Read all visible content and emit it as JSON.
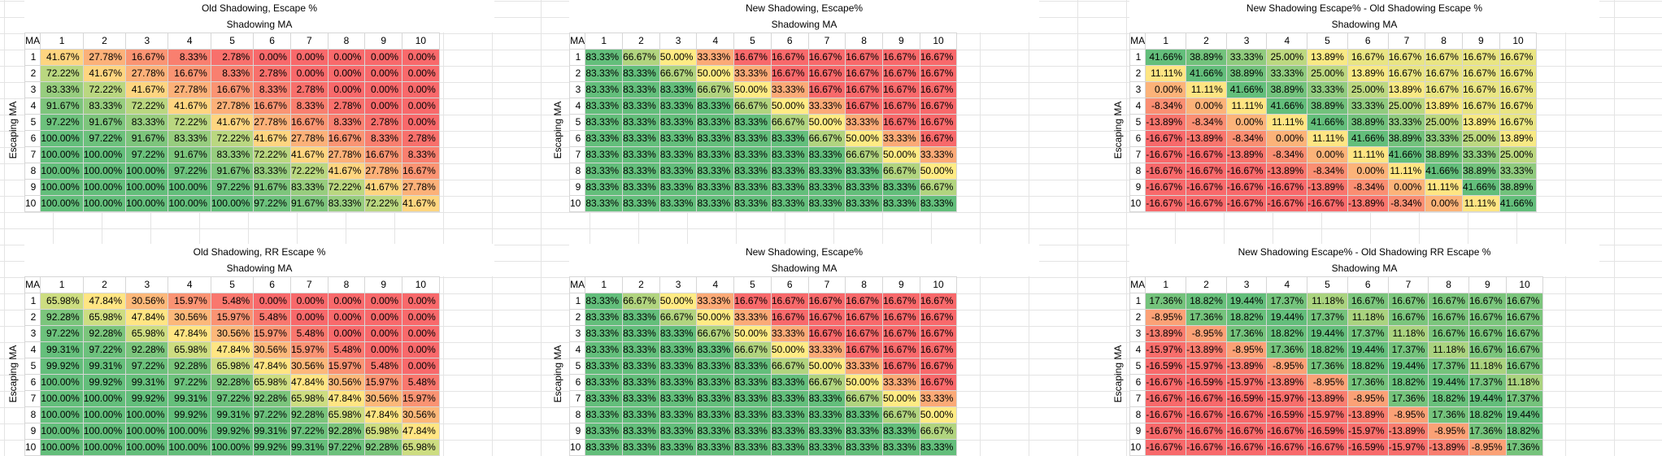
{
  "panels": [
    {
      "title": "Old Shadowing, Escape %",
      "subtitle": "Shadowing MA",
      "ylabel": "Escaping MA",
      "corner": "MA",
      "cols": [
        "1",
        "2",
        "3",
        "4",
        "5",
        "6",
        "7",
        "8",
        "9",
        "10"
      ],
      "rowlabels": [
        "1",
        "2",
        "3",
        "4",
        "5",
        "6",
        "7",
        "8",
        "9",
        "10"
      ],
      "rows": [
        [
          "41.67%",
          "27.78%",
          "16.67%",
          "8.33%",
          "2.78%",
          "0.00%",
          "0.00%",
          "0.00%",
          "0.00%",
          "0.00%"
        ],
        [
          "72.22%",
          "41.67%",
          "27.78%",
          "16.67%",
          "8.33%",
          "2.78%",
          "0.00%",
          "0.00%",
          "0.00%",
          "0.00%"
        ],
        [
          "83.33%",
          "72.22%",
          "41.67%",
          "27.78%",
          "16.67%",
          "8.33%",
          "2.78%",
          "0.00%",
          "0.00%",
          "0.00%"
        ],
        [
          "91.67%",
          "83.33%",
          "72.22%",
          "41.67%",
          "27.78%",
          "16.67%",
          "8.33%",
          "2.78%",
          "0.00%",
          "0.00%"
        ],
        [
          "97.22%",
          "91.67%",
          "83.33%",
          "72.22%",
          "41.67%",
          "27.78%",
          "16.67%",
          "8.33%",
          "2.78%",
          "0.00%"
        ],
        [
          "100.00%",
          "97.22%",
          "91.67%",
          "83.33%",
          "72.22%",
          "41.67%",
          "27.78%",
          "16.67%",
          "8.33%",
          "2.78%"
        ],
        [
          "100.00%",
          "100.00%",
          "97.22%",
          "91.67%",
          "83.33%",
          "72.22%",
          "41.67%",
          "27.78%",
          "16.67%",
          "8.33%"
        ],
        [
          "100.00%",
          "100.00%",
          "100.00%",
          "97.22%",
          "91.67%",
          "83.33%",
          "72.22%",
          "41.67%",
          "27.78%",
          "16.67%"
        ],
        [
          "100.00%",
          "100.00%",
          "100.00%",
          "100.00%",
          "97.22%",
          "91.67%",
          "83.33%",
          "72.22%",
          "41.67%",
          "27.78%"
        ],
        [
          "100.00%",
          "100.00%",
          "100.00%",
          "100.00%",
          "100.00%",
          "97.22%",
          "91.67%",
          "83.33%",
          "72.22%",
          "41.67%"
        ]
      ]
    },
    {
      "title": "New Shadowing, Escape%",
      "subtitle": "Shadowing MA",
      "ylabel": "Escaping MA",
      "corner": "MA",
      "cols": [
        "1",
        "2",
        "3",
        "4",
        "5",
        "6",
        "7",
        "8",
        "9",
        "10"
      ],
      "rowlabels": [
        "1",
        "2",
        "3",
        "4",
        "5",
        "6",
        "7",
        "8",
        "9",
        "10"
      ],
      "rows": [
        [
          "83.33%",
          "66.67%",
          "50.00%",
          "33.33%",
          "16.67%",
          "16.67%",
          "16.67%",
          "16.67%",
          "16.67%",
          "16.67%"
        ],
        [
          "83.33%",
          "83.33%",
          "66.67%",
          "50.00%",
          "33.33%",
          "16.67%",
          "16.67%",
          "16.67%",
          "16.67%",
          "16.67%"
        ],
        [
          "83.33%",
          "83.33%",
          "83.33%",
          "66.67%",
          "50.00%",
          "33.33%",
          "16.67%",
          "16.67%",
          "16.67%",
          "16.67%"
        ],
        [
          "83.33%",
          "83.33%",
          "83.33%",
          "83.33%",
          "66.67%",
          "50.00%",
          "33.33%",
          "16.67%",
          "16.67%",
          "16.67%"
        ],
        [
          "83.33%",
          "83.33%",
          "83.33%",
          "83.33%",
          "83.33%",
          "66.67%",
          "50.00%",
          "33.33%",
          "16.67%",
          "16.67%"
        ],
        [
          "83.33%",
          "83.33%",
          "83.33%",
          "83.33%",
          "83.33%",
          "83.33%",
          "66.67%",
          "50.00%",
          "33.33%",
          "16.67%"
        ],
        [
          "83.33%",
          "83.33%",
          "83.33%",
          "83.33%",
          "83.33%",
          "83.33%",
          "83.33%",
          "66.67%",
          "50.00%",
          "33.33%"
        ],
        [
          "83.33%",
          "83.33%",
          "83.33%",
          "83.33%",
          "83.33%",
          "83.33%",
          "83.33%",
          "83.33%",
          "66.67%",
          "50.00%"
        ],
        [
          "83.33%",
          "83.33%",
          "83.33%",
          "83.33%",
          "83.33%",
          "83.33%",
          "83.33%",
          "83.33%",
          "83.33%",
          "66.67%"
        ],
        [
          "83.33%",
          "83.33%",
          "83.33%",
          "83.33%",
          "83.33%",
          "83.33%",
          "83.33%",
          "83.33%",
          "83.33%",
          "83.33%"
        ]
      ]
    },
    {
      "title": "New Shadowing Escape% - Old Shadowing Escape %",
      "subtitle": "Shadowing MA",
      "ylabel": "Escaping MA",
      "corner": "MA",
      "cols": [
        "1",
        "2",
        "3",
        "4",
        "5",
        "6",
        "7",
        "8",
        "9",
        "10"
      ],
      "rowlabels": [
        "1",
        "2",
        "3",
        "4",
        "5",
        "6",
        "7",
        "8",
        "9",
        "10"
      ],
      "rows": [
        [
          "41.66%",
          "38.89%",
          "33.33%",
          "25.00%",
          "13.89%",
          "16.67%",
          "16.67%",
          "16.67%",
          "16.67%",
          "16.67%"
        ],
        [
          "11.11%",
          "41.66%",
          "38.89%",
          "33.33%",
          "25.00%",
          "13.89%",
          "16.67%",
          "16.67%",
          "16.67%",
          "16.67%"
        ],
        [
          "0.00%",
          "11.11%",
          "41.66%",
          "38.89%",
          "33.33%",
          "25.00%",
          "13.89%",
          "16.67%",
          "16.67%",
          "16.67%"
        ],
        [
          "-8.34%",
          "0.00%",
          "11.11%",
          "41.66%",
          "38.89%",
          "33.33%",
          "25.00%",
          "13.89%",
          "16.67%",
          "16.67%"
        ],
        [
          "-13.89%",
          "-8.34%",
          "0.00%",
          "11.11%",
          "41.66%",
          "38.89%",
          "33.33%",
          "25.00%",
          "13.89%",
          "16.67%"
        ],
        [
          "-16.67%",
          "-13.89%",
          "-8.34%",
          "0.00%",
          "11.11%",
          "41.66%",
          "38.89%",
          "33.33%",
          "25.00%",
          "13.89%"
        ],
        [
          "-16.67%",
          "-16.67%",
          "-13.89%",
          "-8.34%",
          "0.00%",
          "11.11%",
          "41.66%",
          "38.89%",
          "33.33%",
          "25.00%"
        ],
        [
          "-16.67%",
          "-16.67%",
          "-16.67%",
          "-13.89%",
          "-8.34%",
          "0.00%",
          "11.11%",
          "41.66%",
          "38.89%",
          "33.33%"
        ],
        [
          "-16.67%",
          "-16.67%",
          "-16.67%",
          "-16.67%",
          "-13.89%",
          "-8.34%",
          "0.00%",
          "11.11%",
          "41.66%",
          "38.89%"
        ],
        [
          "-16.67%",
          "-16.67%",
          "-16.67%",
          "-16.67%",
          "-16.67%",
          "-13.89%",
          "-8.34%",
          "0.00%",
          "11.11%",
          "41.66%"
        ]
      ]
    },
    {
      "title": "Old Shadowing, RR Escape %",
      "subtitle": "Shadowing MA",
      "ylabel": "Escaping MA",
      "corner": "MA",
      "cols": [
        "1",
        "2",
        "3",
        "4",
        "5",
        "6",
        "7",
        "8",
        "9",
        "10"
      ],
      "rowlabels": [
        "1",
        "2",
        "3",
        "4",
        "5",
        "6",
        "7",
        "8",
        "9",
        "10"
      ],
      "rows": [
        [
          "65.98%",
          "47.84%",
          "30.56%",
          "15.97%",
          "5.48%",
          "0.00%",
          "0.00%",
          "0.00%",
          "0.00%",
          "0.00%"
        ],
        [
          "92.28%",
          "65.98%",
          "47.84%",
          "30.56%",
          "15.97%",
          "5.48%",
          "0.00%",
          "0.00%",
          "0.00%",
          "0.00%"
        ],
        [
          "97.22%",
          "92.28%",
          "65.98%",
          "47.84%",
          "30.56%",
          "15.97%",
          "5.48%",
          "0.00%",
          "0.00%",
          "0.00%"
        ],
        [
          "99.31%",
          "97.22%",
          "92.28%",
          "65.98%",
          "47.84%",
          "30.56%",
          "15.97%",
          "5.48%",
          "0.00%",
          "0.00%"
        ],
        [
          "99.92%",
          "99.31%",
          "97.22%",
          "92.28%",
          "65.98%",
          "47.84%",
          "30.56%",
          "15.97%",
          "5.48%",
          "0.00%"
        ],
        [
          "100.00%",
          "99.92%",
          "99.31%",
          "97.22%",
          "92.28%",
          "65.98%",
          "47.84%",
          "30.56%",
          "15.97%",
          "5.48%"
        ],
        [
          "100.00%",
          "100.00%",
          "99.92%",
          "99.31%",
          "97.22%",
          "92.28%",
          "65.98%",
          "47.84%",
          "30.56%",
          "15.97%"
        ],
        [
          "100.00%",
          "100.00%",
          "100.00%",
          "99.92%",
          "99.31%",
          "97.22%",
          "92.28%",
          "65.98%",
          "47.84%",
          "30.56%"
        ],
        [
          "100.00%",
          "100.00%",
          "100.00%",
          "100.00%",
          "99.92%",
          "99.31%",
          "97.22%",
          "92.28%",
          "65.98%",
          "47.84%"
        ],
        [
          "100.00%",
          "100.00%",
          "100.00%",
          "100.00%",
          "100.00%",
          "99.92%",
          "99.31%",
          "97.22%",
          "92.28%",
          "65.98%"
        ]
      ]
    },
    {
      "title": "New Shadowing, Escape%",
      "subtitle": "Shadowing MA",
      "ylabel": "Escaping MA",
      "corner": "MA",
      "cols": [
        "1",
        "2",
        "3",
        "4",
        "5",
        "6",
        "7",
        "8",
        "9",
        "10"
      ],
      "rowlabels": [
        "1",
        "2",
        "3",
        "4",
        "5",
        "6",
        "7",
        "8",
        "9",
        "10"
      ],
      "rows": [
        [
          "83.33%",
          "66.67%",
          "50.00%",
          "33.33%",
          "16.67%",
          "16.67%",
          "16.67%",
          "16.67%",
          "16.67%",
          "16.67%"
        ],
        [
          "83.33%",
          "83.33%",
          "66.67%",
          "50.00%",
          "33.33%",
          "16.67%",
          "16.67%",
          "16.67%",
          "16.67%",
          "16.67%"
        ],
        [
          "83.33%",
          "83.33%",
          "83.33%",
          "66.67%",
          "50.00%",
          "33.33%",
          "16.67%",
          "16.67%",
          "16.67%",
          "16.67%"
        ],
        [
          "83.33%",
          "83.33%",
          "83.33%",
          "83.33%",
          "66.67%",
          "50.00%",
          "33.33%",
          "16.67%",
          "16.67%",
          "16.67%"
        ],
        [
          "83.33%",
          "83.33%",
          "83.33%",
          "83.33%",
          "83.33%",
          "66.67%",
          "50.00%",
          "33.33%",
          "16.67%",
          "16.67%"
        ],
        [
          "83.33%",
          "83.33%",
          "83.33%",
          "83.33%",
          "83.33%",
          "83.33%",
          "66.67%",
          "50.00%",
          "33.33%",
          "16.67%"
        ],
        [
          "83.33%",
          "83.33%",
          "83.33%",
          "83.33%",
          "83.33%",
          "83.33%",
          "83.33%",
          "66.67%",
          "50.00%",
          "33.33%"
        ],
        [
          "83.33%",
          "83.33%",
          "83.33%",
          "83.33%",
          "83.33%",
          "83.33%",
          "83.33%",
          "83.33%",
          "66.67%",
          "50.00%"
        ],
        [
          "83.33%",
          "83.33%",
          "83.33%",
          "83.33%",
          "83.33%",
          "83.33%",
          "83.33%",
          "83.33%",
          "83.33%",
          "66.67%"
        ],
        [
          "83.33%",
          "83.33%",
          "83.33%",
          "83.33%",
          "83.33%",
          "83.33%",
          "83.33%",
          "83.33%",
          "83.33%",
          "83.33%"
        ]
      ]
    },
    {
      "title": "New Shadowing Escape% - Old Shadowing RR Escape %",
      "subtitle": "Shadowing MA",
      "ylabel": "Escaping MA",
      "corner": "MA",
      "cols": [
        "1",
        "2",
        "3",
        "4",
        "5",
        "6",
        "7",
        "8",
        "9",
        "10"
      ],
      "rowlabels": [
        "1",
        "2",
        "3",
        "4",
        "5",
        "6",
        "7",
        "8",
        "9",
        "10"
      ],
      "rows": [
        [
          "17.36%",
          "18.82%",
          "19.44%",
          "17.37%",
          "11.18%",
          "16.67%",
          "16.67%",
          "16.67%",
          "16.67%",
          "16.67%"
        ],
        [
          "-8.95%",
          "17.36%",
          "18.82%",
          "19.44%",
          "17.37%",
          "11.18%",
          "16.67%",
          "16.67%",
          "16.67%",
          "16.67%"
        ],
        [
          "-13.89%",
          "-8.95%",
          "17.36%",
          "18.82%",
          "19.44%",
          "17.37%",
          "11.18%",
          "16.67%",
          "16.67%",
          "16.67%"
        ],
        [
          "-15.97%",
          "-13.89%",
          "-8.95%",
          "17.36%",
          "18.82%",
          "19.44%",
          "17.37%",
          "11.18%",
          "16.67%",
          "16.67%"
        ],
        [
          "-16.59%",
          "-15.97%",
          "-13.89%",
          "-8.95%",
          "17.36%",
          "18.82%",
          "19.44%",
          "17.37%",
          "11.18%",
          "16.67%"
        ],
        [
          "-16.67%",
          "-16.59%",
          "-15.97%",
          "-13.89%",
          "-8.95%",
          "17.36%",
          "18.82%",
          "19.44%",
          "17.37%",
          "11.18%"
        ],
        [
          "-16.67%",
          "-16.67%",
          "-16.59%",
          "-15.97%",
          "-13.89%",
          "-8.95%",
          "17.36%",
          "18.82%",
          "19.44%",
          "17.37%"
        ],
        [
          "-16.67%",
          "-16.67%",
          "-16.67%",
          "-16.59%",
          "-15.97%",
          "-13.89%",
          "-8.95%",
          "17.36%",
          "18.82%",
          "19.44%"
        ],
        [
          "-16.67%",
          "-16.67%",
          "-16.67%",
          "-16.67%",
          "-16.59%",
          "-15.97%",
          "-13.89%",
          "-8.95%",
          "17.36%",
          "18.82%"
        ],
        [
          "-16.67%",
          "-16.67%",
          "-16.67%",
          "-16.67%",
          "-16.67%",
          "-16.59%",
          "-15.97%",
          "-13.89%",
          "-8.95%",
          "17.36%"
        ]
      ]
    }
  ],
  "colors": {
    "low": "#f8696b",
    "mid": "#ffeb84",
    "high": "#63be7b"
  }
}
